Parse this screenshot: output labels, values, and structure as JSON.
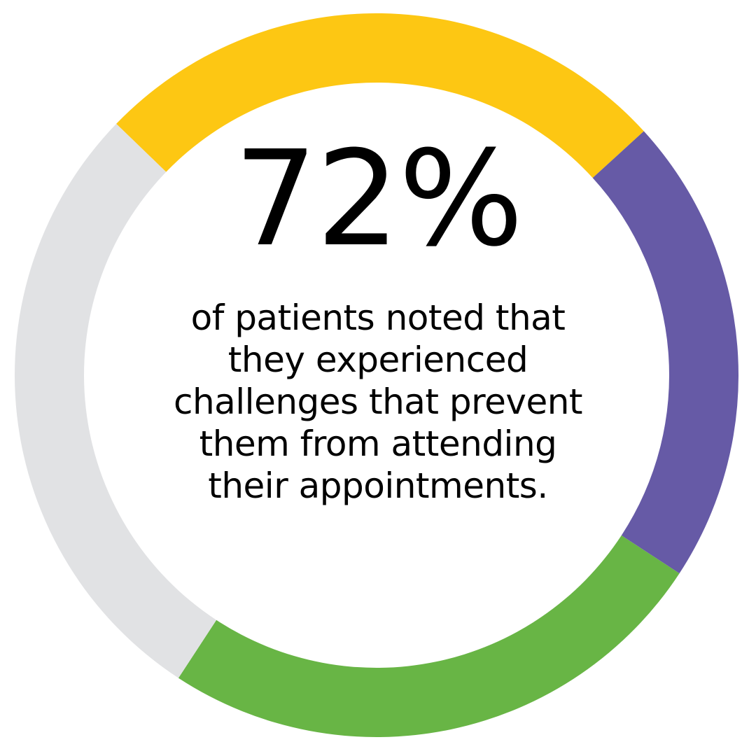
{
  "chart_data": {
    "type": "pie",
    "style": "donut",
    "segments": [
      {
        "value": 26,
        "color": "#FDC713"
      },
      {
        "value": 21,
        "color": "#665AA6"
      },
      {
        "value": 25,
        "color": "#68B545"
      },
      {
        "value": 28,
        "color": "#E1E2E4"
      }
    ],
    "start_angle_deg": -46,
    "center_value": "72%",
    "center_caption": [
      "of patients noted that",
      "they experienced",
      "challenges that prevent",
      "them from attending",
      "their appointments."
    ]
  }
}
